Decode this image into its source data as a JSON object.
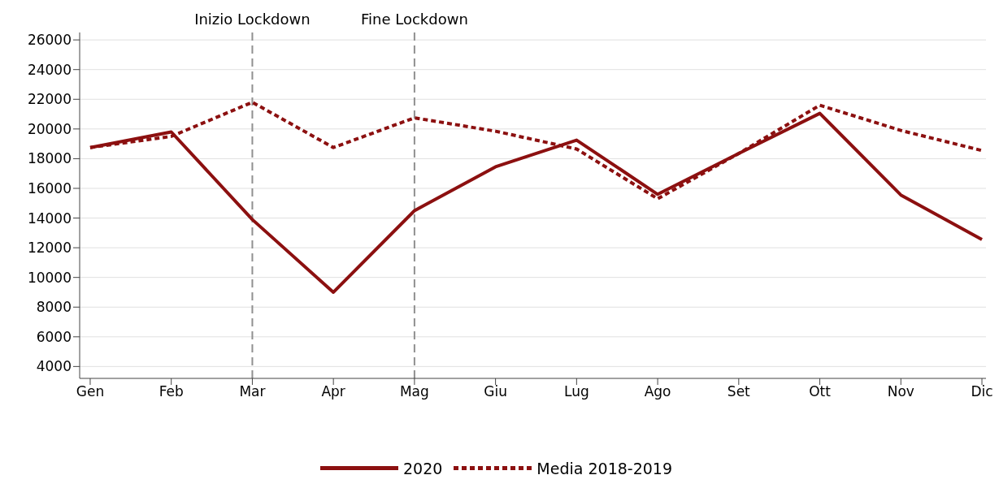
{
  "chart_data": {
    "type": "line",
    "categories": [
      "Gen",
      "Feb",
      "Mar",
      "Apr",
      "Mag",
      "Giu",
      "Lug",
      "Ago",
      "Set",
      "Ott",
      "Nov",
      "Dic"
    ],
    "ylim": [
      3200,
      26500
    ],
    "yticks": [
      4000,
      6000,
      8000,
      10000,
      12000,
      14000,
      16000,
      18000,
      20000,
      22000,
      24000,
      26000
    ],
    "series": [
      {
        "name": "2020",
        "color": "#8c1010",
        "line_style": "solid",
        "values": [
          18750,
          19800,
          13900,
          9000,
          14500,
          17450,
          19250,
          15600,
          18350,
          21050,
          15550,
          12550
        ]
      },
      {
        "name": "Media 2018-2019",
        "color": "#8c1010",
        "line_style": "dotted",
        "values": [
          18750,
          19500,
          21800,
          18750,
          20750,
          19850,
          18650,
          15300,
          18350,
          21600,
          19900,
          18550
        ]
      }
    ],
    "ref_lines": [
      {
        "axis": "x",
        "value": "Mar",
        "label": "Inizio Lockdown",
        "color": "#909090",
        "line_style": "dashed"
      },
      {
        "axis": "x",
        "value": "Mag",
        "label": "Fine Lockdown",
        "color": "#909090",
        "line_style": "dashed"
      }
    ],
    "grid": "y",
    "legend": "bottom",
    "marker": "none"
  }
}
